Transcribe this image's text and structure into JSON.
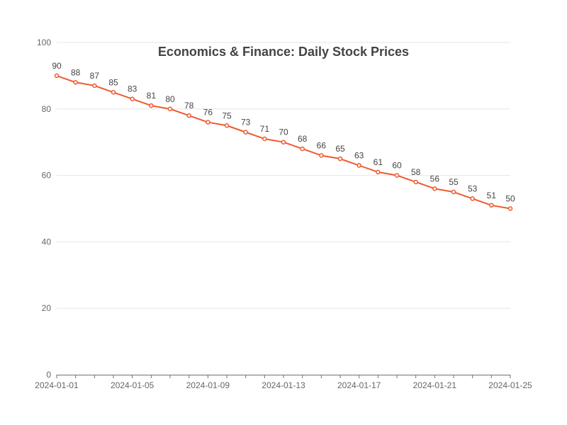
{
  "chart_data": {
    "type": "line",
    "title": "Economics & Finance: Daily Stock Prices",
    "xlabel": "",
    "ylabel": "",
    "x": [
      "2024-01-01",
      "2024-01-02",
      "2024-01-03",
      "2024-01-04",
      "2024-01-05",
      "2024-01-06",
      "2024-01-07",
      "2024-01-08",
      "2024-01-09",
      "2024-01-10",
      "2024-01-11",
      "2024-01-12",
      "2024-01-13",
      "2024-01-14",
      "2024-01-15",
      "2024-01-16",
      "2024-01-17",
      "2024-01-18",
      "2024-01-19",
      "2024-01-20",
      "2024-01-21",
      "2024-01-22",
      "2024-01-23",
      "2024-01-24",
      "2024-01-25"
    ],
    "x_tick_labels": [
      "2024-01-01",
      "2024-01-05",
      "2024-01-09",
      "2024-01-13",
      "2024-01-17",
      "2024-01-21",
      "2024-01-25"
    ],
    "series": [
      {
        "values": [
          90,
          88,
          87,
          85,
          83,
          81,
          80,
          78,
          76,
          75,
          73,
          71,
          70,
          68,
          66,
          65,
          63,
          61,
          60,
          58,
          56,
          55,
          53,
          51,
          50
        ],
        "color": "#ee5a2f"
      }
    ],
    "ylim": [
      0,
      100
    ],
    "y_ticks": [
      0,
      20,
      40,
      60,
      80,
      100
    ],
    "grid": true,
    "legend": "none"
  }
}
